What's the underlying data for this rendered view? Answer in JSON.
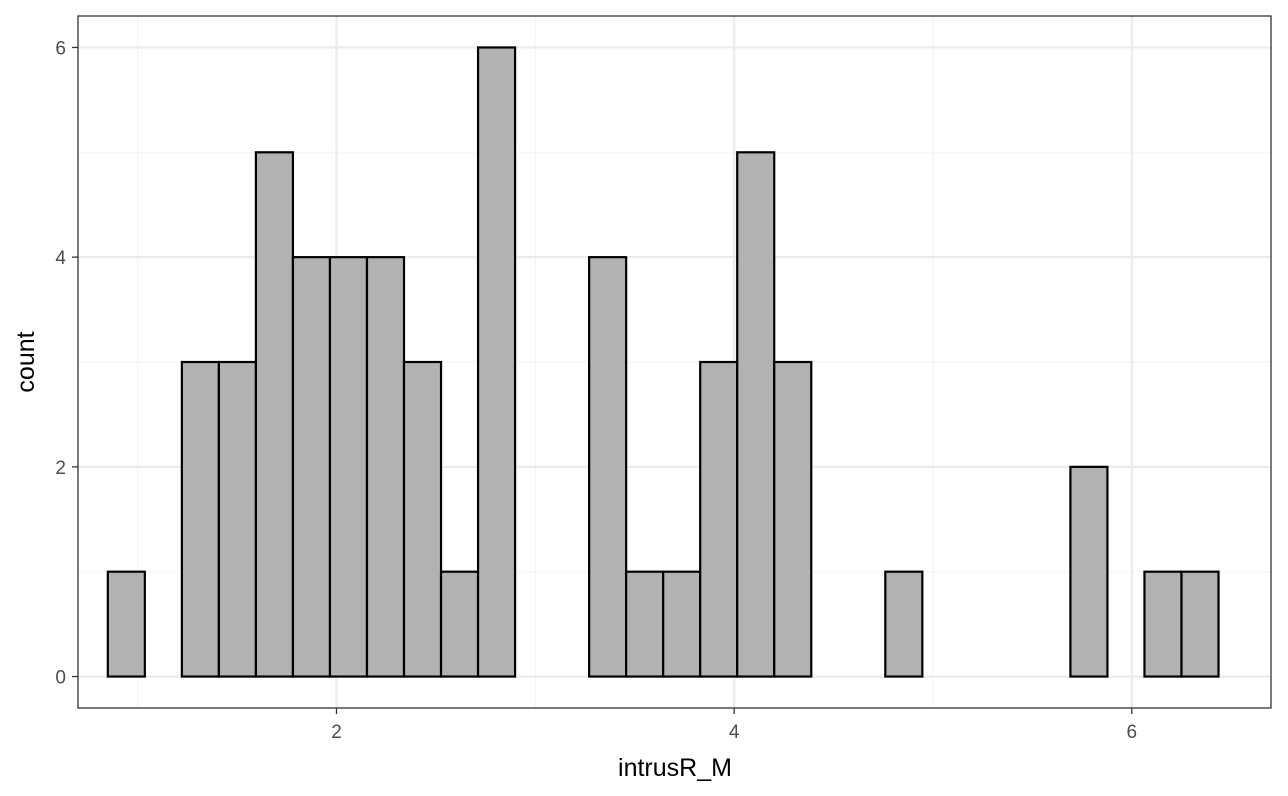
{
  "chart_data": {
    "type": "bar",
    "xlabel": "intrusR_M",
    "ylabel": "count",
    "xlim": [
      0.7,
      6.7
    ],
    "ylim": [
      -0.3,
      6.3
    ],
    "bin_width": 0.1862,
    "bins_start": 0.85,
    "counts": [
      1,
      0,
      3,
      3,
      5,
      4,
      4,
      4,
      3,
      1,
      6,
      0,
      0,
      4,
      1,
      1,
      3,
      5,
      3,
      0,
      0,
      1,
      0,
      0,
      0,
      0,
      2,
      0,
      1,
      1
    ],
    "x_ticks": [
      2,
      4,
      6
    ],
    "y_ticks": [
      0,
      2,
      4,
      6
    ],
    "grid": true,
    "bar_fill": "#b2b2b2",
    "bar_stroke": "#000000",
    "grid_major_color": "#ebebeb",
    "grid_minor_color": "#f4f4f4",
    "panel_border_color": "#333333"
  }
}
